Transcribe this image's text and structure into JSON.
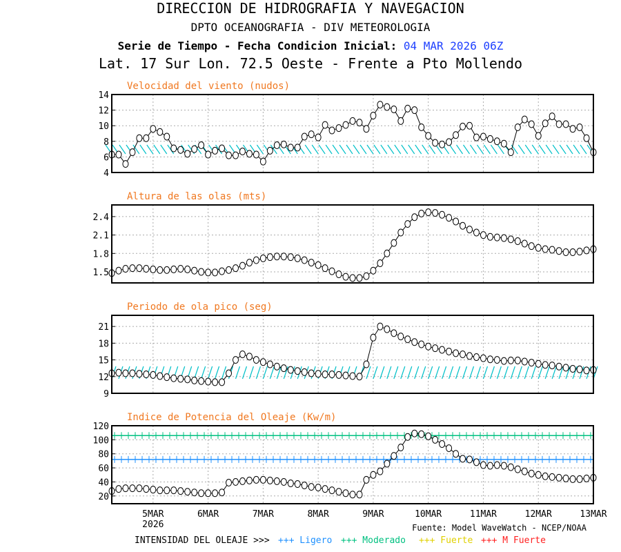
{
  "header": {
    "line1": "DIRECCION DE HIDROGRAFIA Y NAVEGACION",
    "line2": "DPTO OCEANOGRAFIA - DIV METEOROLOGIA",
    "line3a": "Serie de Tiempo - Fecha Condicion Inicial:",
    "line3b": "04 MAR 2026 06Z",
    "line4": "Lat. 17 Sur  Lon. 72.5 Oeste - Frente a Pto Mollendo"
  },
  "footer": {
    "source": "Fuente: Model WaveWatch - NCEP/NOAA",
    "intensity_label": "INTENSIDAD DEL OLEAJE >>>",
    "legend": [
      {
        "label": "+++ Ligero",
        "color": "#1e90ff"
      },
      {
        "label": "+++ Moderado",
        "color": "#00c080"
      },
      {
        "label": "+++ Fuerte",
        "color": "#e0d000"
      },
      {
        "label": "+++ M Fuerte",
        "color": "#ff2020"
      }
    ]
  },
  "x_axis": {
    "start_day": 4.25,
    "end_day": 13,
    "step_days": 0.125,
    "ticks": [
      {
        "day": 5,
        "label": "5MAR"
      },
      {
        "day": 6,
        "label": "6MAR"
      },
      {
        "day": 7,
        "label": "7MAR"
      },
      {
        "day": 8,
        "label": "8MAR"
      },
      {
        "day": 9,
        "label": "9MAR"
      },
      {
        "day": 10,
        "label": "10MAR"
      },
      {
        "day": 11,
        "label": "11MAR"
      },
      {
        "day": 12,
        "label": "12MAR"
      },
      {
        "day": 13,
        "label": "13MAR"
      }
    ],
    "year_label": "2026"
  },
  "chart_data": [
    {
      "type": "line",
      "title": "Velocidad del viento (nudos)",
      "ylim": [
        4,
        14
      ],
      "yticks": [
        4,
        6,
        8,
        10,
        12,
        14
      ],
      "arrows": true,
      "values": [
        6.3,
        6.3,
        5.1,
        6.6,
        8.4,
        8.4,
        9.6,
        9.2,
        8.6,
        7.1,
        6.9,
        6.4,
        7.0,
        7.5,
        6.3,
        6.8,
        7.1,
        6.2,
        6.2,
        6.7,
        6.4,
        6.3,
        5.4,
        6.8,
        7.5,
        7.6,
        7.2,
        7.2,
        8.6,
        8.9,
        8.5,
        10.1,
        9.4,
        9.7,
        10.1,
        10.6,
        10.4,
        9.6,
        11.3,
        12.7,
        12.4,
        12.1,
        10.6,
        12.2,
        12.0,
        9.8,
        8.7,
        7.8,
        7.6,
        7.9,
        8.8,
        9.9,
        10.0,
        8.5,
        8.6,
        8.3,
        8.0,
        7.7,
        6.6,
        9.8,
        10.8,
        10.2,
        8.7,
        10.3,
        11.2,
        10.2,
        10.2,
        9.6,
        9.8,
        8.4,
        6.6
      ]
    },
    {
      "type": "line",
      "title": "Altura de las olas (mts)",
      "ylim": [
        1.32,
        2.59
      ],
      "yticks": [
        1.5,
        1.8,
        2.1,
        2.4
      ],
      "values": [
        1.48,
        1.52,
        1.55,
        1.56,
        1.56,
        1.55,
        1.54,
        1.53,
        1.53,
        1.54,
        1.55,
        1.54,
        1.52,
        1.5,
        1.49,
        1.49,
        1.51,
        1.53,
        1.56,
        1.6,
        1.65,
        1.69,
        1.72,
        1.74,
        1.75,
        1.75,
        1.74,
        1.72,
        1.69,
        1.65,
        1.61,
        1.56,
        1.51,
        1.46,
        1.42,
        1.4,
        1.4,
        1.43,
        1.52,
        1.64,
        1.8,
        1.97,
        2.14,
        2.28,
        2.39,
        2.45,
        2.47,
        2.46,
        2.43,
        2.38,
        2.32,
        2.25,
        2.19,
        2.14,
        2.1,
        2.07,
        2.06,
        2.05,
        2.03,
        2.0,
        1.96,
        1.92,
        1.89,
        1.87,
        1.86,
        1.84,
        1.82,
        1.82,
        1.83,
        1.85,
        1.87
      ]
    },
    {
      "type": "line",
      "title": "Periodo de ola pico (seg)",
      "ylim": [
        9,
        23
      ],
      "yticks": [
        9,
        12,
        15,
        18,
        21
      ],
      "arrows": true,
      "values": [
        12.6,
        12.7,
        12.6,
        12.6,
        12.5,
        12.4,
        12.3,
        12.1,
        11.9,
        11.7,
        11.6,
        11.5,
        11.3,
        11.2,
        11.1,
        11.0,
        11.0,
        12.6,
        15.0,
        16.0,
        15.6,
        15.0,
        14.6,
        14.2,
        13.8,
        13.5,
        13.2,
        13.0,
        12.8,
        12.6,
        12.5,
        12.4,
        12.4,
        12.3,
        12.2,
        12.1,
        12.0,
        14.2,
        19.0,
        21.0,
        20.5,
        19.8,
        19.2,
        18.7,
        18.2,
        17.8,
        17.4,
        17.1,
        16.8,
        16.5,
        16.2,
        16.0,
        15.7,
        15.5,
        15.3,
        15.1,
        15.0,
        14.8,
        14.9,
        14.9,
        14.7,
        14.5,
        14.3,
        14.1,
        14.0,
        13.8,
        13.6,
        13.4,
        13.3,
        13.1,
        13.2
      ]
    },
    {
      "type": "line",
      "title": "Indice de Potencia del Oleaje (Kw/m)",
      "ylim": [
        9,
        120
      ],
      "yticks": [
        20,
        40,
        60,
        80,
        100,
        120
      ],
      "thresholds": [
        {
          "value": 106,
          "color": "#00c080"
        },
        {
          "value": 72,
          "color": "#1e90ff"
        }
      ],
      "values": [
        27,
        30,
        31,
        31,
        31,
        30,
        29,
        28,
        28,
        28,
        27,
        26,
        25,
        24,
        24,
        24,
        25,
        39,
        40,
        41,
        42,
        43,
        43,
        42,
        41,
        40,
        38,
        37,
        35,
        33,
        32,
        30,
        28,
        26,
        24,
        22,
        22,
        43,
        50,
        55,
        66,
        77,
        89,
        104,
        109,
        108,
        105,
        100,
        94,
        88,
        80,
        73,
        72,
        68,
        64,
        63,
        64,
        63,
        61,
        58,
        55,
        52,
        50,
        48,
        47,
        46,
        45,
        44,
        44,
        45,
        46
      ]
    }
  ]
}
